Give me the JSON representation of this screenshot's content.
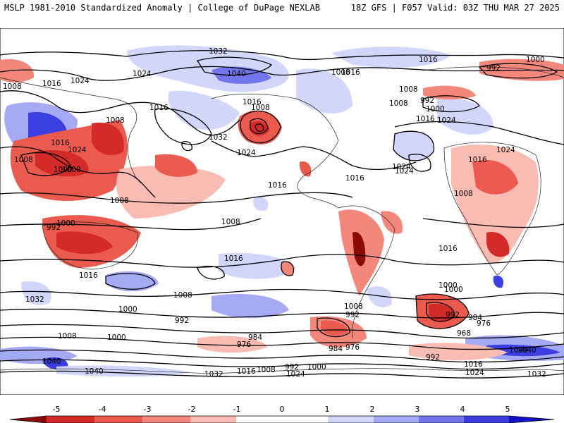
{
  "header": {
    "left": "MSLP 1981-2010 Standardized Anomaly | College of DuPage NEXLAB",
    "right": "18Z GFS | F057 Valid: 03Z THU MAR 27 2025"
  },
  "isobar_labels": [
    "1032",
    "1040",
    "1016",
    "1024",
    "1008",
    "1016",
    "1008",
    "1016",
    "1024",
    "1000",
    "992",
    "1008",
    "1000",
    "992",
    "1008",
    "1016",
    "1024",
    "1016",
    "1032",
    "1016",
    "1008",
    "1024",
    "1000",
    "1008",
    "1016",
    "1024",
    "1008",
    "1008",
    "1016",
    "1016",
    "1016",
    "1024",
    "1016",
    "1024",
    "1008",
    "1000",
    "992",
    "1000",
    "992",
    "1000",
    "1024",
    "1008",
    "1016",
    "1000",
    "992",
    "1008",
    "1032",
    "1016",
    "984",
    "976",
    "1008",
    "992",
    "1040",
    "984",
    "1000",
    "968",
    "976",
    "984",
    "976",
    "992",
    "1008",
    "1000",
    "1040",
    "1040",
    "1040",
    "1032",
    "1016",
    "1008",
    "992",
    "1000",
    "1024",
    "1016",
    "1024",
    "1032"
  ],
  "colorbar": {
    "ticks": [
      "-5",
      "-4",
      "-3",
      "-2",
      "-1",
      "0",
      "1",
      "2",
      "3",
      "4",
      "5"
    ],
    "colors": {
      "neg5": "#8c0a0a",
      "neg4": "#d42a2a",
      "neg3": "#ea5a4e",
      "neg2": "#f4877b",
      "neg1": "#f9bcb2",
      "zero": "#ffffff",
      "pos1": "#d2d6fb",
      "pos2": "#a6aaf4",
      "pos3": "#7276ec",
      "pos4": "#3b3fe0",
      "pos5": "#1212c8"
    }
  }
}
